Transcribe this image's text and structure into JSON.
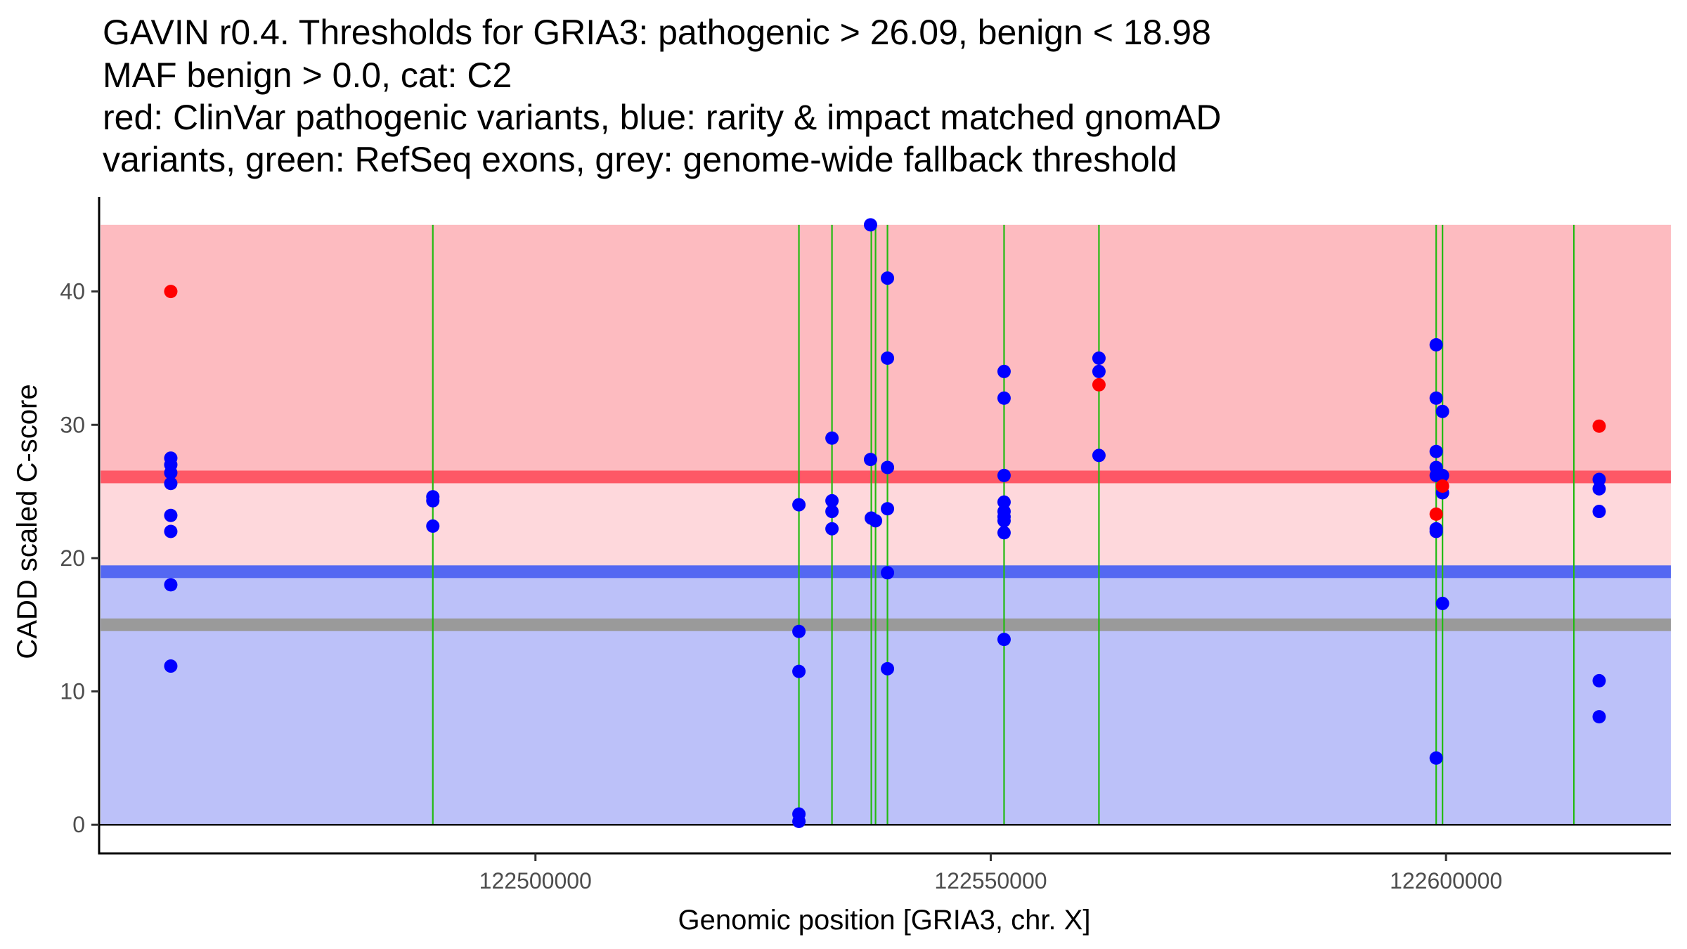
{
  "chart_data": {
    "type": "scatter",
    "title_lines": [
      "GAVIN r0.4. Thresholds for GRIA3: pathogenic > 26.09, benign < 18.98",
      "MAF benign > 0.0, cat: C2",
      "red: ClinVar pathogenic variants, blue: rarity & impact matched gnomAD",
      "variants, green: RefSeq exons, grey: genome-wide fallback threshold"
    ],
    "xlabel": "Genomic position [GRIA3, chr. X]",
    "ylabel": "CADD scaled C-score",
    "xlim": [
      122452080,
      122624690
    ],
    "ylim": [
      -2.15,
      47.1
    ],
    "x_ticks": [
      122500000,
      122550000,
      122600000
    ],
    "x_tick_labels": [
      "122500000",
      "122550000",
      "122600000"
    ],
    "y_ticks": [
      0,
      10,
      20,
      30,
      40
    ],
    "y_tick_labels": [
      "0",
      "10",
      "20",
      "30",
      "40"
    ],
    "grid": false,
    "legend": "none",
    "regions": [
      {
        "name": "pathogenic-region",
        "ymin": 26.09,
        "ymax": 45,
        "color": "#FDBBC0"
      },
      {
        "name": "grey-zone-region",
        "ymin": 18.98,
        "ymax": 26.09,
        "color": "#FED8DC"
      },
      {
        "name": "benign-region",
        "ymin": 0,
        "ymax": 18.98,
        "color": "#BCC1F9"
      }
    ],
    "region_x_range": [
      122452250,
      122624690
    ],
    "thresholds": [
      {
        "name": "pathogenic-threshold",
        "value": 26.09,
        "color": "#FE5866"
      },
      {
        "name": "benign-threshold",
        "value": 18.98,
        "color": "#5468F2"
      },
      {
        "name": "genome-wide-fallback-threshold",
        "value": 15,
        "color": "#9A9A9A"
      }
    ],
    "exons": [
      122488730,
      122528935,
      122532565,
      122536885,
      122537350,
      122538660,
      122551465,
      122561885,
      122598920,
      122599615,
      122614045
    ],
    "exon_color": "#22BB11",
    "series": [
      {
        "name": "ClinVar pathogenic variants",
        "color": "#FF0000",
        "points": [
          {
            "x": 122459950,
            "y": 40.0
          },
          {
            "x": 122561885,
            "y": 33.0
          },
          {
            "x": 122598920,
            "y": 23.3
          },
          {
            "x": 122599615,
            "y": 25.4
          },
          {
            "x": 122616820,
            "y": 29.9
          }
        ]
      },
      {
        "name": "rarity & impact matched gnomAD variants",
        "color": "#0000FF",
        "points": [
          {
            "x": 122459950,
            "y": 27.5
          },
          {
            "x": 122459950,
            "y": 27.0
          },
          {
            "x": 122459950,
            "y": 26.4
          },
          {
            "x": 122459950,
            "y": 25.6
          },
          {
            "x": 122459950,
            "y": 23.2
          },
          {
            "x": 122459950,
            "y": 22.0
          },
          {
            "x": 122459950,
            "y": 18.0
          },
          {
            "x": 122459950,
            "y": 11.9
          },
          {
            "x": 122488730,
            "y": 24.6
          },
          {
            "x": 122488730,
            "y": 24.3
          },
          {
            "x": 122488730,
            "y": 22.4
          },
          {
            "x": 122528935,
            "y": 24.0
          },
          {
            "x": 122528935,
            "y": 14.5
          },
          {
            "x": 122528935,
            "y": 11.5
          },
          {
            "x": 122528935,
            "y": 0.8
          },
          {
            "x": 122528935,
            "y": 0.25
          },
          {
            "x": 122532565,
            "y": 29.0
          },
          {
            "x": 122532565,
            "y": 24.3
          },
          {
            "x": 122532565,
            "y": 23.5
          },
          {
            "x": 122532565,
            "y": 22.2
          },
          {
            "x": 122536800,
            "y": 45.0
          },
          {
            "x": 122536800,
            "y": 27.4
          },
          {
            "x": 122536885,
            "y": 23.0
          },
          {
            "x": 122537350,
            "y": 22.8
          },
          {
            "x": 122538660,
            "y": 41.0
          },
          {
            "x": 122538660,
            "y": 35.0
          },
          {
            "x": 122538660,
            "y": 26.8
          },
          {
            "x": 122538660,
            "y": 23.7
          },
          {
            "x": 122538660,
            "y": 18.9
          },
          {
            "x": 122538660,
            "y": 11.7
          },
          {
            "x": 122551465,
            "y": 34.0
          },
          {
            "x": 122551465,
            "y": 32.0
          },
          {
            "x": 122551465,
            "y": 26.2
          },
          {
            "x": 122551465,
            "y": 24.2
          },
          {
            "x": 122551465,
            "y": 23.5
          },
          {
            "x": 122551465,
            "y": 23.1
          },
          {
            "x": 122551465,
            "y": 22.8
          },
          {
            "x": 122551465,
            "y": 21.9
          },
          {
            "x": 122551465,
            "y": 13.9
          },
          {
            "x": 122561885,
            "y": 35.0
          },
          {
            "x": 122561885,
            "y": 34.0
          },
          {
            "x": 122561885,
            "y": 27.7
          },
          {
            "x": 122598920,
            "y": 36.0
          },
          {
            "x": 122598920,
            "y": 32.0
          },
          {
            "x": 122598920,
            "y": 28.0
          },
          {
            "x": 122598920,
            "y": 26.8
          },
          {
            "x": 122598920,
            "y": 26.2
          },
          {
            "x": 122598920,
            "y": 22.2
          },
          {
            "x": 122598920,
            "y": 22.0
          },
          {
            "x": 122598920,
            "y": 5.0
          },
          {
            "x": 122599615,
            "y": 31.0
          },
          {
            "x": 122599615,
            "y": 26.2
          },
          {
            "x": 122599615,
            "y": 24.9
          },
          {
            "x": 122599615,
            "y": 16.6
          },
          {
            "x": 122616820,
            "y": 25.9
          },
          {
            "x": 122616820,
            "y": 25.2
          },
          {
            "x": 122616820,
            "y": 23.5
          },
          {
            "x": 122616820,
            "y": 10.8
          },
          {
            "x": 122616820,
            "y": 8.1
          }
        ]
      }
    ]
  }
}
